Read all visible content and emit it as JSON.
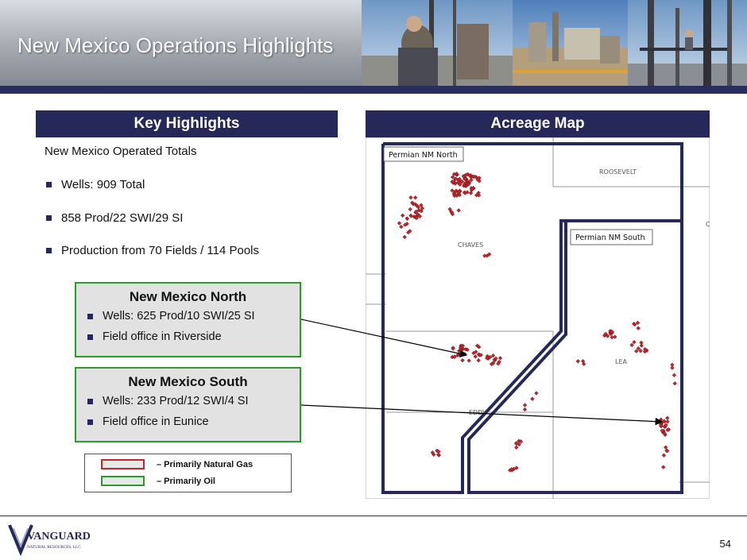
{
  "header": {
    "title": "New Mexico Operations Highlights"
  },
  "key_highlights": {
    "heading": "Key Highlights",
    "totals_title": "New Mexico Operated Totals",
    "bullets": [
      "Wells: 909 Total",
      "858 Prod/22 SWI/29 SI",
      "Production from 70 Fields / 114 Pools"
    ]
  },
  "north": {
    "title": "New Mexico North",
    "items": [
      "Wells: 625 Prod/10 SWI/25 SI",
      "Field office in Riverside"
    ]
  },
  "south": {
    "title": "New Mexico South",
    "items": [
      "Wells: 233 Prod/12 SWI/4 SI",
      "Field office in Eunice"
    ]
  },
  "legend": {
    "gas": {
      "label": "–  Primarily Natural Gas",
      "color": "#c0282d"
    },
    "oil": {
      "label": "–  Primarily Oil",
      "color": "#2c9b2c"
    }
  },
  "acreage_map": {
    "heading": "Acreage Map",
    "north_label": "Permian NM North",
    "south_label": "Permian NM South",
    "counties": [
      "ROOSEVELT",
      "CHAVES",
      "LEA",
      "EDDY"
    ],
    "edge_letter": "C"
  },
  "footer": {
    "logo_text": "VANGUARD",
    "logo_subtext": "NATURAL RESOURCES, LLC",
    "page_number": "54"
  }
}
